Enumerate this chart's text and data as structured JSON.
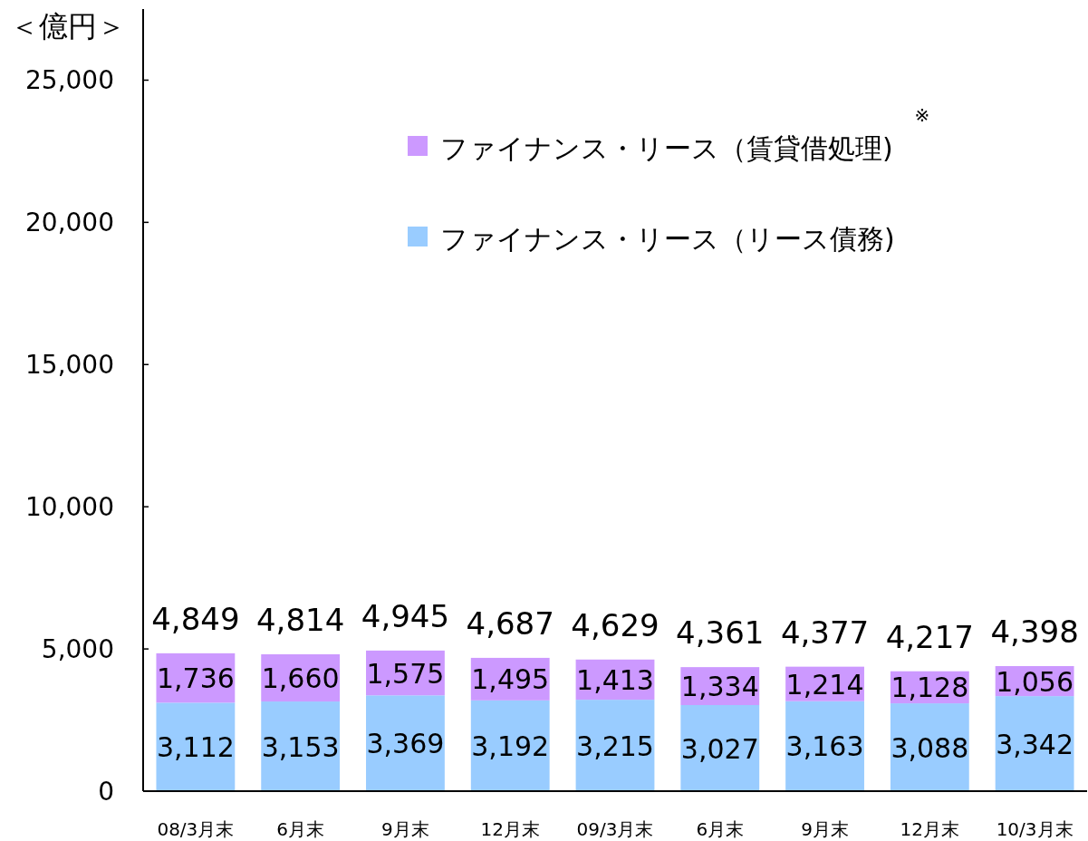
{
  "chart_data": {
    "type": "bar",
    "stacked": true,
    "ylabel": "＜億円＞",
    "categories": [
      "08/3月末",
      "6月末",
      "9月末",
      "12月末",
      "09/3月末",
      "6月末",
      "9月末",
      "12月末",
      "10/3月末"
    ],
    "series": [
      {
        "name": "ファイナンス・リース（リース債務)",
        "color": "#99ccff",
        "values": [
          3112,
          3153,
          3369,
          3192,
          3215,
          3027,
          3163,
          3088,
          3342
        ],
        "value_labels": [
          "3,112",
          "3,153",
          "3,369",
          "3,192",
          "3,215",
          "3,027",
          "3,163",
          "3,088",
          "3,342"
        ]
      },
      {
        "name": "ファイナンス・リース（賃貸借処理)",
        "color": "#cc99ff",
        "values": [
          1736,
          1660,
          1575,
          1495,
          1413,
          1334,
          1214,
          1128,
          1056
        ],
        "value_labels": [
          "1,736",
          "1,660",
          "1,575",
          "1,495",
          "1,413",
          "1,334",
          "1,214",
          "1,128",
          "1,056"
        ]
      }
    ],
    "totals": [
      "4,849",
      "4,814",
      "4,945",
      "4,687",
      "4,629",
      "4,361",
      "4,377",
      "4,217",
      "4,398"
    ],
    "ylim": [
      0,
      27500
    ],
    "yticks": [
      0,
      {
        "value": 5000,
        "label": "5,000"
      },
      {
        "value": 10000,
        "label": "10,000"
      },
      {
        "value": 15000,
        "label": "15,000"
      },
      {
        "value": 20000,
        "label": "20,000"
      },
      {
        "value": 25000,
        "label": "25,000"
      }
    ],
    "legend": "top",
    "grid": false,
    "annotations": [
      "※"
    ]
  }
}
